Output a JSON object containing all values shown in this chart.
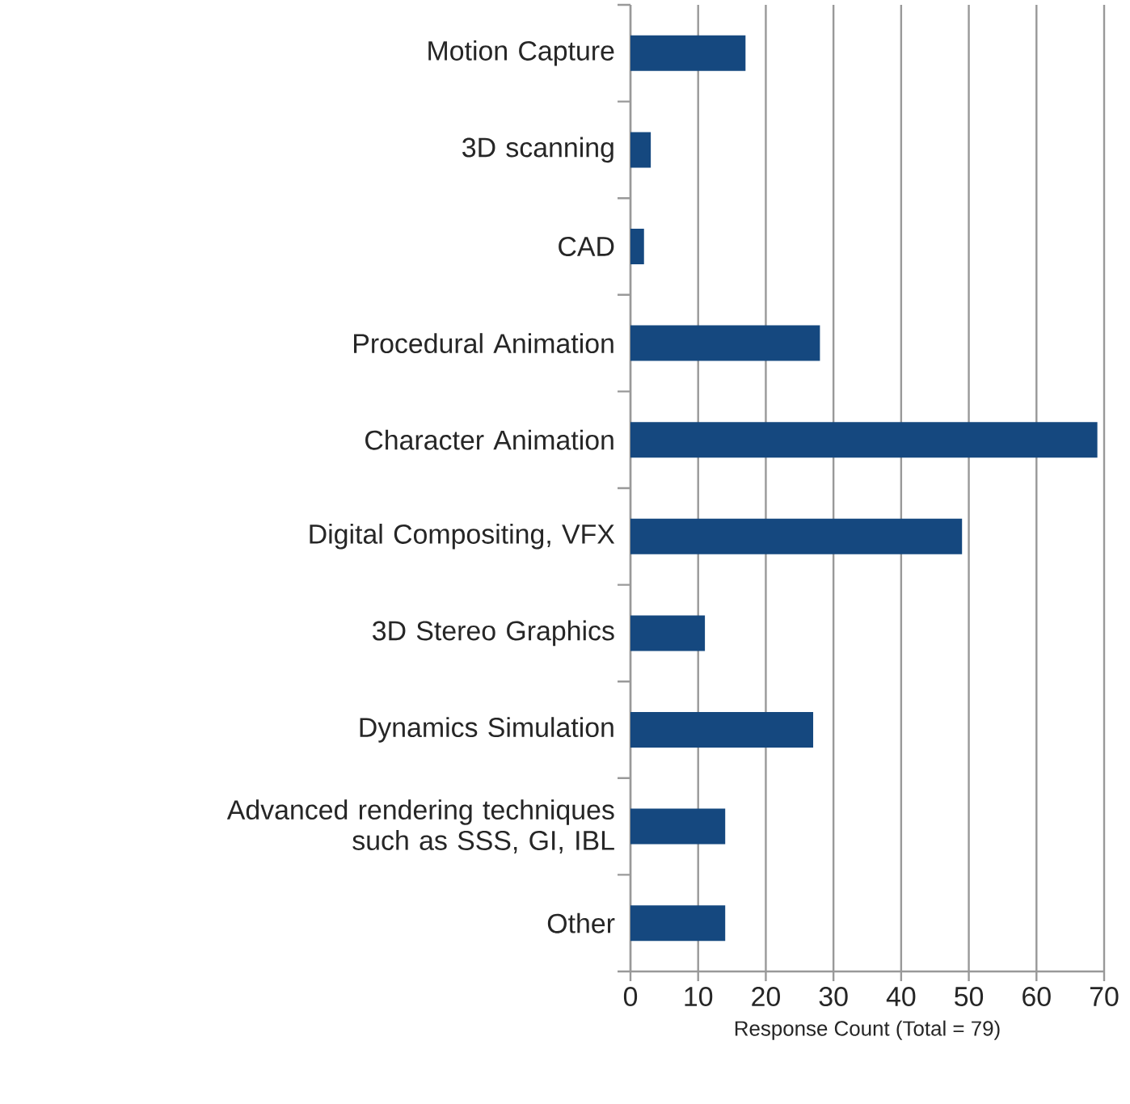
{
  "chart_data": {
    "type": "bar",
    "orientation": "horizontal",
    "categories": [
      "Motion Capture",
      "3D scanning",
      "CAD",
      "Procedural Animation",
      "Character Animation",
      "Digital Compositing, VFX",
      "3D Stereo Graphics",
      "Dynamics Simulation",
      "Advanced rendering techniques such as SSS, GI, IBL",
      "Other"
    ],
    "values": [
      17,
      3,
      2,
      28,
      69,
      49,
      11,
      27,
      14,
      14
    ],
    "color": "#15487f",
    "xlabel": "Response Count (Total = 79)",
    "xlim": [
      0,
      70
    ],
    "xticks": [
      0,
      10,
      20,
      30,
      40,
      50,
      60,
      70
    ],
    "grid": "x"
  }
}
